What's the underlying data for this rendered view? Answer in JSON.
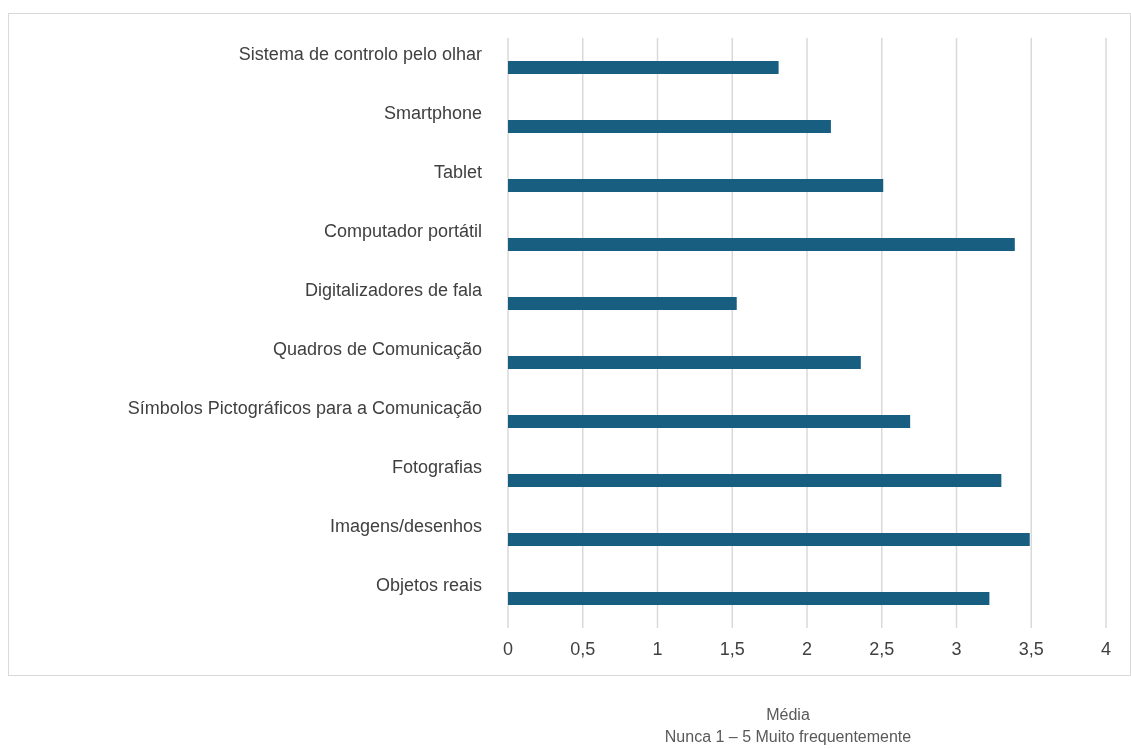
{
  "chart_data": {
    "type": "bar",
    "orientation": "horizontal",
    "xlabel": "Média",
    "annotations": [
      "Nunca 1 – 5 Muito frequentemente"
    ],
    "categories": [
      "Sistema de controlo pelo olhar",
      "Smartphone",
      "Tablet",
      "Computador portátil",
      "Digitalizadores de fala",
      "Quadros de Comunicação",
      "Símbolos Pictográficos para a Comunicação",
      "Fotografias",
      "Imagens/desenhos",
      "Objetos reais"
    ],
    "values": [
      1.81,
      2.16,
      2.51,
      3.39,
      1.53,
      2.36,
      2.69,
      3.3,
      3.49,
      3.22
    ],
    "color": "#175e80",
    "xlim": [
      0,
      4
    ],
    "xticks": [
      0,
      {
        "value": 0.5,
        "label": "0,5"
      },
      1,
      {
        "value": 1.5,
        "label": "1,5"
      },
      2,
      {
        "value": 2.5,
        "label": "2,5"
      },
      3,
      {
        "value": 3.5,
        "label": "3,5"
      },
      4
    ],
    "grid": "x",
    "legend": false
  }
}
